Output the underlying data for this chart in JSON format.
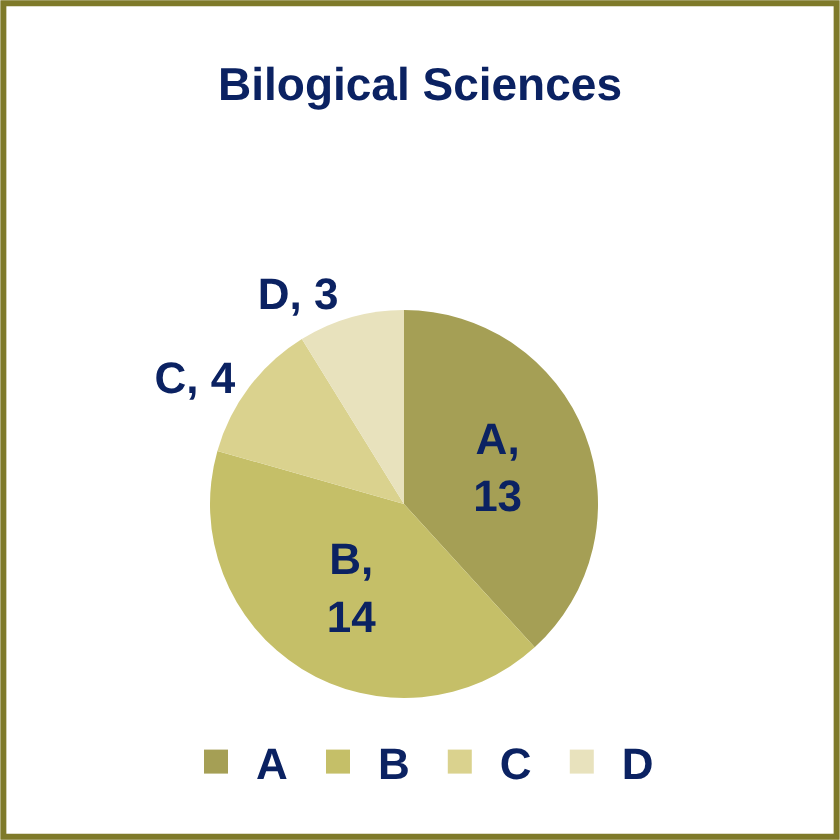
{
  "chart_data": {
    "type": "pie",
    "title": "Bilogical Sciences",
    "categories": [
      "A",
      "B",
      "C",
      "D"
    ],
    "values": [
      13,
      14,
      4,
      3
    ],
    "colors": [
      "#a59f55",
      "#c5bf68",
      "#dad28e",
      "#e8e2bd"
    ],
    "value_labels": [
      "A, 13",
      "B, 14",
      "C, 4",
      "D, 3"
    ],
    "legend": "bottom"
  }
}
